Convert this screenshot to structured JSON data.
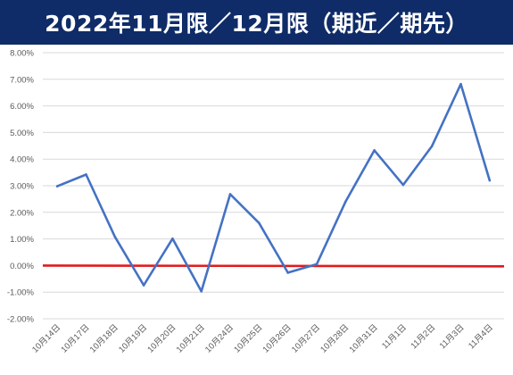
{
  "title": "2022年11月限／12月限（期近／期先）",
  "colors": {
    "title_bg": "#0f2c68",
    "title_text": "#ffffff",
    "series_line": "#4472c4",
    "zero_line": "#e31a1c",
    "grid": "#d9d9d9",
    "tick_text": "#595959"
  },
  "chart_data": {
    "type": "line",
    "title": "2022年11月限／12月限（期近／期先）",
    "xlabel": "",
    "ylabel": "",
    "categories": [
      "10月14日",
      "10月17日",
      "10月18日",
      "10月19日",
      "10月20日",
      "10月21日",
      "10月24日",
      "10月25日",
      "10月26日",
      "10月27日",
      "10月28日",
      "10月31日",
      "11月1日",
      "11月2日",
      "11月3日",
      "11月4日"
    ],
    "series": [
      {
        "values": [
          2.98,
          3.42,
          1.08,
          -0.74,
          1.01,
          -0.97,
          2.68,
          1.6,
          -0.27,
          0.05,
          2.4,
          4.33,
          3.03,
          4.49,
          6.82,
          3.2
        ]
      }
    ],
    "reference_line": {
      "values": [
        0.0,
        -0.03
      ]
    },
    "ylim": [
      -2.0,
      8.0
    ],
    "yticks": [
      "-2.00%",
      "-1.00%",
      "0.00%",
      "1.00%",
      "2.00%",
      "3.00%",
      "4.00%",
      "5.00%",
      "6.00%",
      "7.00%",
      "8.00%"
    ],
    "grid": true,
    "legend": "none"
  }
}
